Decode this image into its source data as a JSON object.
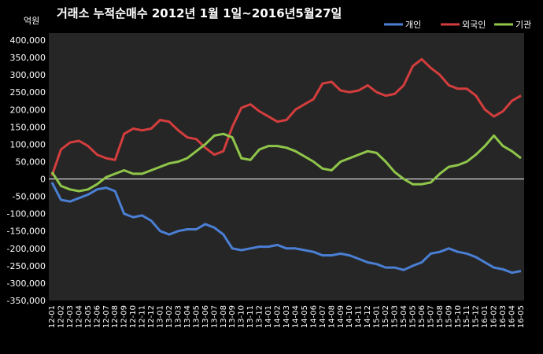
{
  "chart_data": {
    "type": "line",
    "title": "거래소 누적순매수 2012년 1월 1일~2016년5월27일",
    "unit_label": "억원",
    "ylim": [
      -350000,
      400000
    ],
    "yticks": [
      400000,
      350000,
      300000,
      250000,
      200000,
      150000,
      100000,
      50000,
      0,
      -50000,
      -100000,
      -150000,
      -200000,
      -250000,
      -300000,
      -350000
    ],
    "ytick_labels": [
      "400,000",
      "350,000",
      "300,000",
      "250,000",
      "200,000",
      "150,000",
      "100,000",
      "50,000",
      "0",
      "-50,000",
      "-100,000",
      "-150,000",
      "-200,000",
      "-250,000",
      "-300,000",
      "-350,000"
    ],
    "categories": [
      "12-01",
      "12-02",
      "12-03",
      "12-04",
      "12-05",
      "12-06",
      "12-07",
      "12-08",
      "12-09",
      "12-10",
      "12-11",
      "12-12",
      "13-01",
      "13-02",
      "13-03",
      "13-04",
      "13-05",
      "13-06",
      "13-07",
      "13-08",
      "13-09",
      "13-10",
      "13-11",
      "13-12",
      "14-01",
      "14-02",
      "14-03",
      "14-04",
      "14-05",
      "14-06",
      "14-07",
      "14-08",
      "14-09",
      "14-10",
      "14-11",
      "14-12",
      "15-01",
      "15-02",
      "15-03",
      "15-04",
      "15-05",
      "15-06",
      "15-07",
      "15-08",
      "15-09",
      "15-10",
      "15-11",
      "15-12",
      "16-01",
      "16-02",
      "16-03",
      "16-04",
      "16-05"
    ],
    "grid": false,
    "legend_position": "top-right",
    "series": [
      {
        "name": "개인",
        "color": "#4a7fd4",
        "values": [
          -10000,
          -60000,
          -65000,
          -55000,
          -45000,
          -30000,
          -25000,
          -35000,
          -100000,
          -110000,
          -105000,
          -120000,
          -150000,
          -160000,
          -150000,
          -145000,
          -145000,
          -130000,
          -140000,
          -160000,
          -200000,
          -205000,
          -200000,
          -195000,
          -195000,
          -190000,
          -200000,
          -200000,
          -205000,
          -210000,
          -220000,
          -220000,
          -215000,
          -220000,
          -230000,
          -240000,
          -245000,
          -255000,
          -255000,
          -262000,
          -250000,
          -240000,
          -215000,
          -210000,
          -200000,
          -210000,
          -215000,
          -225000,
          -240000,
          -255000,
          -260000,
          -270000,
          -265000
        ]
      },
      {
        "name": "외국인",
        "color": "#d43d3d",
        "values": [
          10000,
          85000,
          105000,
          110000,
          95000,
          70000,
          60000,
          55000,
          130000,
          145000,
          140000,
          145000,
          170000,
          165000,
          140000,
          120000,
          115000,
          90000,
          70000,
          80000,
          150000,
          205000,
          215000,
          195000,
          180000,
          165000,
          170000,
          200000,
          215000,
          230000,
          275000,
          280000,
          255000,
          250000,
          255000,
          270000,
          250000,
          240000,
          245000,
          270000,
          325000,
          345000,
          320000,
          300000,
          270000,
          260000,
          260000,
          240000,
          200000,
          180000,
          195000,
          225000,
          240000
        ]
      },
      {
        "name": "기관",
        "color": "#8fc64a",
        "values": [
          20000,
          -20000,
          -30000,
          -35000,
          -30000,
          -15000,
          5000,
          15000,
          25000,
          15000,
          15000,
          25000,
          35000,
          45000,
          50000,
          60000,
          80000,
          100000,
          125000,
          130000,
          120000,
          60000,
          55000,
          85000,
          95000,
          95000,
          90000,
          80000,
          65000,
          50000,
          30000,
          25000,
          50000,
          60000,
          70000,
          80000,
          75000,
          50000,
          20000,
          0,
          -15000,
          -15000,
          -10000,
          15000,
          35000,
          40000,
          50000,
          70000,
          95000,
          125000,
          95000,
          80000,
          60000
        ]
      }
    ]
  }
}
